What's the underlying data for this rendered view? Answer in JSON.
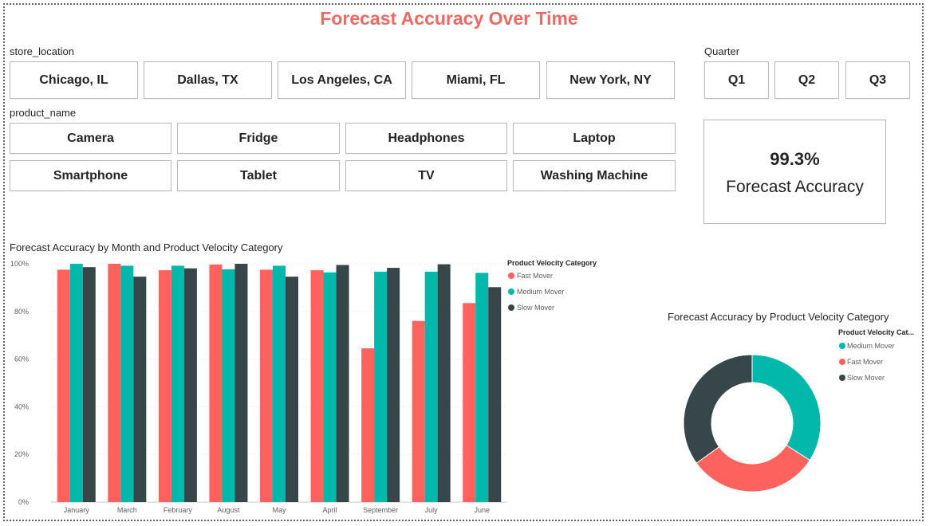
{
  "title": "Forecast Accuracy Over Time",
  "slicers": {
    "store_location": {
      "label": "store_location",
      "items": [
        "Chicago, IL",
        "Dallas, TX",
        "Los Angeles, CA",
        "Miami, FL",
        "New York, NY"
      ]
    },
    "quarter": {
      "label": "Quarter",
      "items": [
        "Q1",
        "Q2",
        "Q3"
      ]
    },
    "product_name": {
      "label": "product_name",
      "items": [
        "Camera",
        "Fridge",
        "Headphones",
        "Laptop",
        "Smartphone",
        "Tablet",
        "TV",
        "Washing Machine"
      ]
    }
  },
  "kpi": {
    "value": "99.3%",
    "label": "Forecast Accuracy"
  },
  "colors": {
    "fast_mover": "#fd625e",
    "medium_mover": "#01b8aa",
    "slow_mover": "#374649",
    "title": "#ec6a63"
  },
  "chart_data": [
    {
      "type": "bar",
      "title": "Forecast Accuracy by Month and Product Velocity Category",
      "categories": [
        "January",
        "March",
        "February",
        "August",
        "May",
        "April",
        "September",
        "July",
        "June"
      ],
      "series": [
        {
          "name": "Fast Mover",
          "color": "#fd625e",
          "values": [
            97.5,
            100,
            97.3,
            99.7,
            97.5,
            97.3,
            64.5,
            76,
            83.5
          ]
        },
        {
          "name": "Medium Mover",
          "color": "#01b8aa",
          "values": [
            100,
            99.2,
            99.2,
            97.7,
            99.2,
            96.4,
            96.7,
            96.7,
            96.2
          ]
        },
        {
          "name": "Slow Mover",
          "color": "#374649",
          "values": [
            98.6,
            94.6,
            98.1,
            100,
            94.6,
            99.5,
            98.3,
            99.8,
            90.2
          ]
        }
      ],
      "yticks": [
        "0%",
        "20%",
        "40%",
        "60%",
        "80%",
        "100%"
      ],
      "ylim": [
        0,
        100
      ],
      "legend_title": "Product Velocity Category",
      "legend_position": "top-right",
      "grid": true
    },
    {
      "type": "pie",
      "title": "Forecast Accuracy by Product Velocity Category",
      "legend_title": "Product Velocity Cat...",
      "legend_position": "top-right",
      "donut": true,
      "slices": [
        {
          "name": "Medium Mover",
          "color": "#01b8aa",
          "value": 34.1
        },
        {
          "name": "Fast Mover",
          "color": "#fd625e",
          "value": 31.0
        },
        {
          "name": "Slow Mover",
          "color": "#374649",
          "value": 34.9
        }
      ]
    }
  ]
}
